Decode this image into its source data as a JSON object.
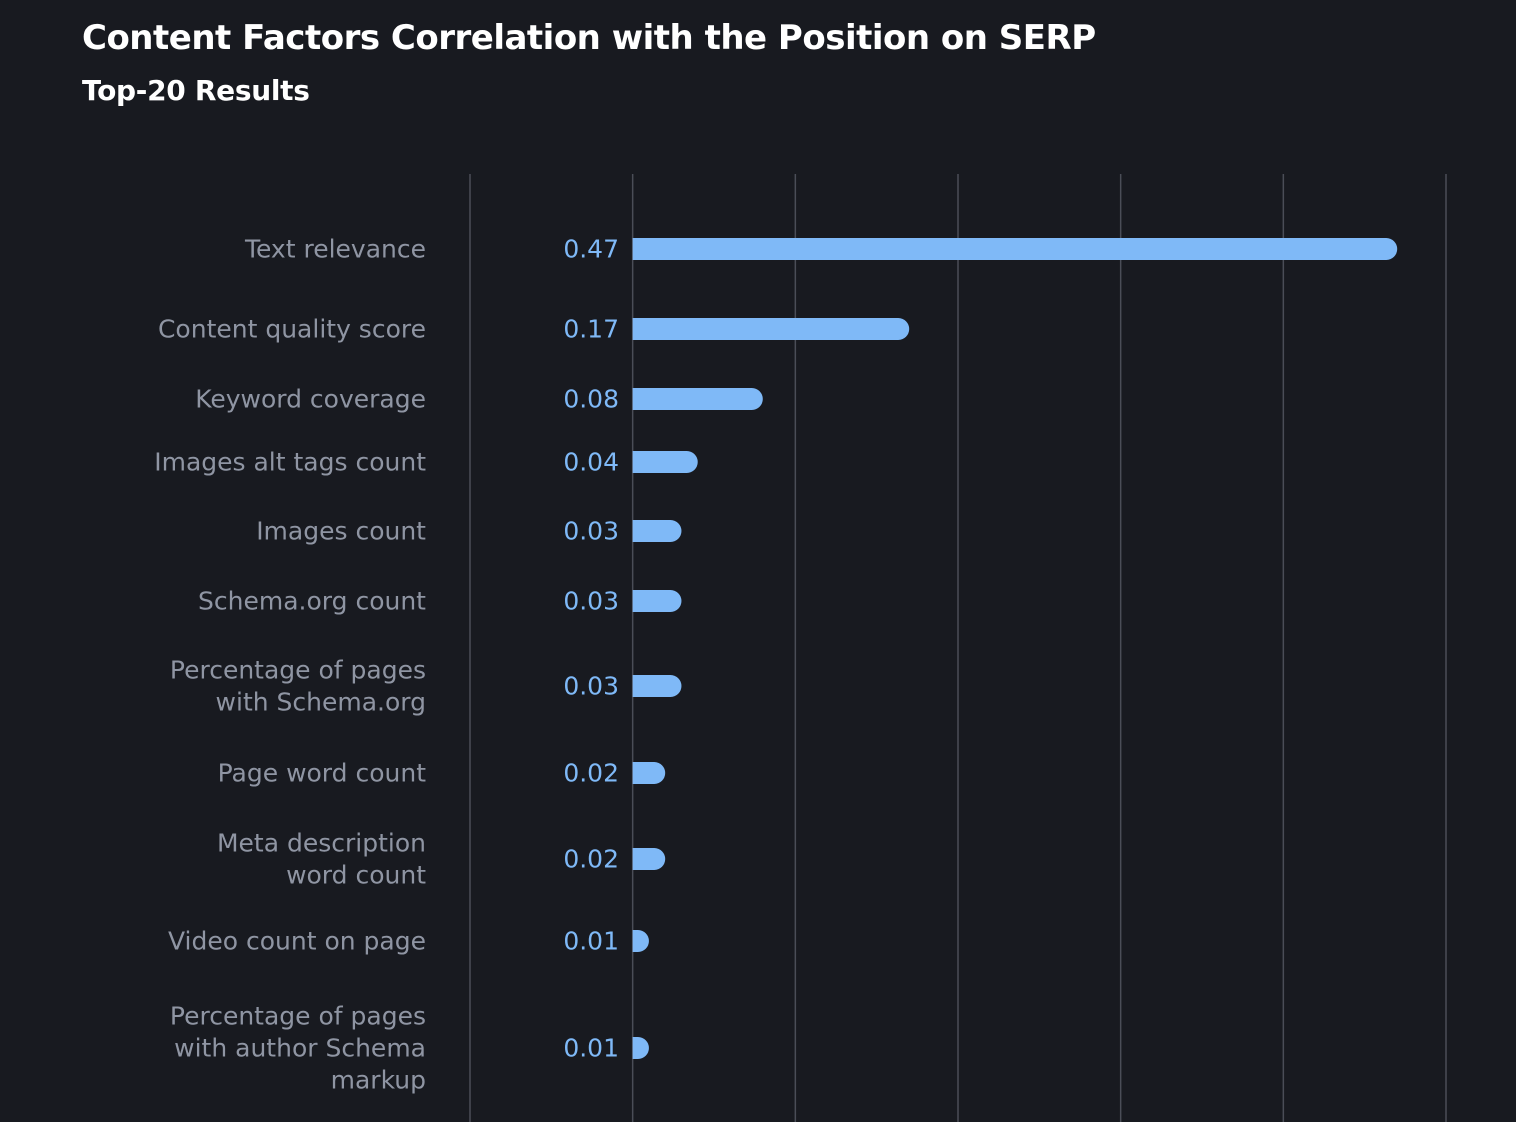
{
  "chart_data": {
    "type": "bar",
    "orientation": "horizontal",
    "title": "Content Factors Correlation with the Position on SERP",
    "subtitle": "Top-20 Results",
    "categories": [
      [
        "Text relevance"
      ],
      [
        "Content quality score"
      ],
      [
        "Keyword coverage"
      ],
      [
        "Images alt tags count"
      ],
      [
        "Images count"
      ],
      [
        "Schema.org count"
      ],
      [
        "Percentage of pages",
        "with Schema.org"
      ],
      [
        "Page word count"
      ],
      [
        "Meta description",
        "word count"
      ],
      [
        "Video count on page"
      ],
      [
        "Percentage of pages",
        "with author Schema",
        "markup"
      ]
    ],
    "values": [
      0.47,
      0.17,
      0.08,
      0.04,
      0.03,
      0.03,
      0.03,
      0.02,
      0.02,
      0.01,
      0.01
    ],
    "value_labels": [
      "0.47",
      "0.17",
      "0.08",
      "0.04",
      "0.03",
      "0.03",
      "0.03",
      "0.02",
      "0.02",
      "0.01",
      "0.01"
    ],
    "xlim": [
      -0.1,
      0.5
    ],
    "xticks": [
      -0.1,
      0,
      0.1,
      0.2,
      0.3,
      0.4,
      0.5
    ],
    "tick_labels_visible": false,
    "grid": true,
    "legend": "none",
    "colors": {
      "background": "#181a20",
      "bar": "#7fb9f7",
      "value_label": "#7fb9f7",
      "category_label": "#8f95a3",
      "grid": "#4a4d57",
      "title": "#ffffff"
    }
  }
}
